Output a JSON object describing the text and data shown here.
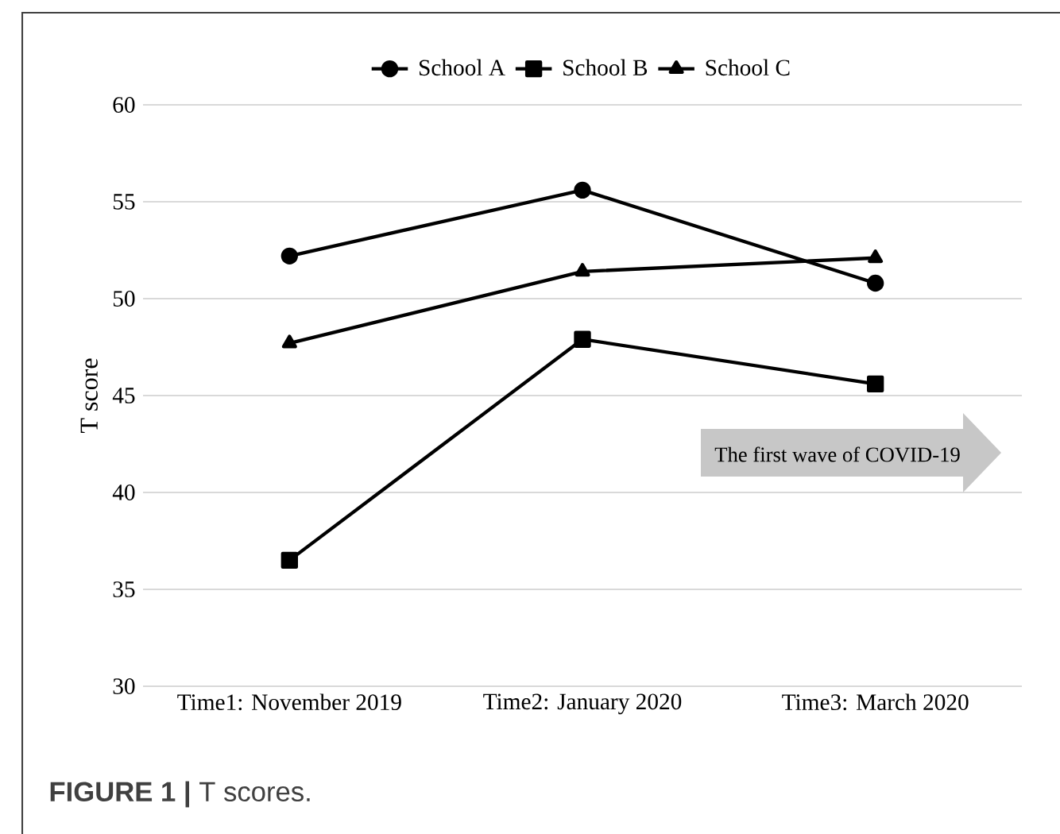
{
  "chart_data": {
    "type": "line",
    "ylabel": "T score",
    "categories": [
      "Time1: November 2019",
      "Time2: January 2020",
      "Time3: March 2020"
    ],
    "series": [
      {
        "name": "School A",
        "color": "#000000",
        "marker": "circle",
        "values": [
          52.2,
          55.6,
          50.8
        ]
      },
      {
        "name": "School B",
        "color": "#000000",
        "marker": "square",
        "values": [
          36.5,
          47.9,
          45.6
        ]
      },
      {
        "name": "School C",
        "color": "#000000",
        "marker": "triangle",
        "values": [
          47.7,
          51.4,
          52.1
        ]
      }
    ],
    "ylim": [
      30,
      60
    ],
    "yticks": [
      30,
      35,
      40,
      45,
      50,
      55,
      60
    ],
    "grid": "y",
    "legend": "top",
    "line_style": "solid",
    "annotations": [
      "The first wave of  COVID-19",
      "**FIGURE 1 |** T scores."
    ]
  }
}
